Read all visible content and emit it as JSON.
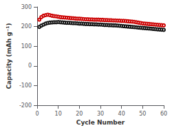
{
  "chart_data": {
    "type": "line",
    "xlabel": "Cycle Number",
    "ylabel": "Capacity (mAh g⁻¹)",
    "x": [
      1,
      2,
      3,
      4,
      5,
      6,
      7,
      8,
      9,
      10,
      11,
      12,
      13,
      14,
      15,
      16,
      17,
      18,
      19,
      20,
      21,
      22,
      23,
      24,
      25,
      26,
      27,
      28,
      29,
      30,
      31,
      32,
      33,
      34,
      35,
      36,
      37,
      38,
      39,
      40,
      41,
      42,
      43,
      44,
      45,
      46,
      47,
      48,
      49,
      50,
      51,
      52,
      53,
      54,
      55,
      56,
      57,
      58,
      59,
      60
    ],
    "series": [
      {
        "color": "#cc0000",
        "marker": "open circle",
        "values": [
          235,
          248,
          255,
          258,
          260,
          258,
          255,
          253,
          252,
          250,
          248,
          247,
          246,
          245,
          244,
          243,
          242,
          241,
          240,
          240,
          239,
          238,
          237,
          237,
          236,
          236,
          235,
          235,
          235,
          234,
          234,
          233,
          233,
          232,
          232,
          231,
          231,
          230,
          230,
          229,
          229,
          228,
          227,
          226,
          225,
          224,
          222,
          220,
          218,
          216,
          215,
          214,
          213,
          212,
          211,
          210,
          209,
          208,
          207,
          206
        ]
      },
      {
        "color": "#111111",
        "marker": "open circle",
        "values": [
          198,
          205,
          210,
          215,
          218,
          220,
          221,
          222,
          222,
          223,
          222,
          221,
          220,
          219,
          219,
          218,
          217,
          217,
          216,
          215,
          215,
          214,
          213,
          213,
          212,
          212,
          211,
          211,
          210,
          210,
          209,
          208,
          208,
          207,
          207,
          206,
          206,
          205,
          204,
          203,
          202,
          201,
          200,
          199,
          198,
          197,
          196,
          195,
          194,
          193,
          192,
          191,
          190,
          189,
          188,
          187,
          186,
          185,
          184,
          183
        ]
      }
    ],
    "xlim": [
      0,
      60
    ],
    "xticks": [
      0,
      10,
      20,
      30,
      40,
      50,
      60
    ],
    "ylim": [
      -200,
      300
    ],
    "yticks": [
      -200,
      -100,
      0,
      100,
      200,
      300
    ],
    "grid": false
  }
}
